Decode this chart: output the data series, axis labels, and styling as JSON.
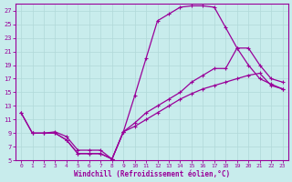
{
  "xlabel": "Windchill (Refroidissement éolien,°C)",
  "bg_color": "#c8ecec",
  "line_color": "#990099",
  "grid_color": "#b0d8d8",
  "xlim": [
    -0.5,
    23.5
  ],
  "ylim": [
    5,
    28
  ],
  "xticks": [
    0,
    1,
    2,
    3,
    4,
    5,
    6,
    7,
    8,
    9,
    10,
    11,
    12,
    13,
    14,
    15,
    16,
    17,
    18,
    19,
    20,
    21,
    22,
    23
  ],
  "yticks": [
    5,
    7,
    9,
    11,
    13,
    15,
    17,
    19,
    21,
    23,
    25,
    27
  ],
  "curve_top_x": [
    0,
    1,
    2,
    3,
    4,
    5,
    6,
    7,
    8,
    9,
    10,
    11,
    12,
    13,
    14,
    15,
    16,
    17,
    18,
    19,
    20,
    21,
    22,
    23
  ],
  "curve_top_y": [
    12,
    9,
    9,
    9,
    8,
    6,
    6,
    6,
    5.2,
    9.2,
    14.5,
    20,
    25.5,
    26.5,
    27.5,
    27.7,
    27.7,
    27.5,
    24.5,
    21.5,
    19,
    17,
    16.2,
    15.5
  ],
  "curve_mid_x": [
    0,
    1,
    2,
    3,
    4,
    5,
    6,
    7,
    8,
    9,
    10,
    11,
    12,
    13,
    14,
    15,
    16,
    17,
    18,
    19,
    20,
    21,
    22,
    23
  ],
  "curve_mid_y": [
    12,
    9,
    9,
    9,
    8,
    6,
    6,
    6,
    5.2,
    9.2,
    10.5,
    12,
    13,
    14,
    15,
    16.5,
    17.5,
    18.5,
    18.5,
    21.5,
    21.5,
    19,
    17,
    16.5
  ],
  "curve_bot_x": [
    1,
    2,
    3,
    4,
    5,
    6,
    7,
    8,
    9,
    10,
    11,
    12,
    13,
    14,
    15,
    16,
    17,
    18,
    19,
    20,
    21,
    22,
    23
  ],
  "curve_bot_y": [
    9,
    9,
    9.2,
    8.5,
    6.5,
    6.5,
    6.5,
    5.2,
    9.2,
    10,
    11,
    12,
    13,
    14,
    14.8,
    15.5,
    16,
    16.5,
    17,
    17.5,
    17.8,
    16,
    15.5
  ]
}
